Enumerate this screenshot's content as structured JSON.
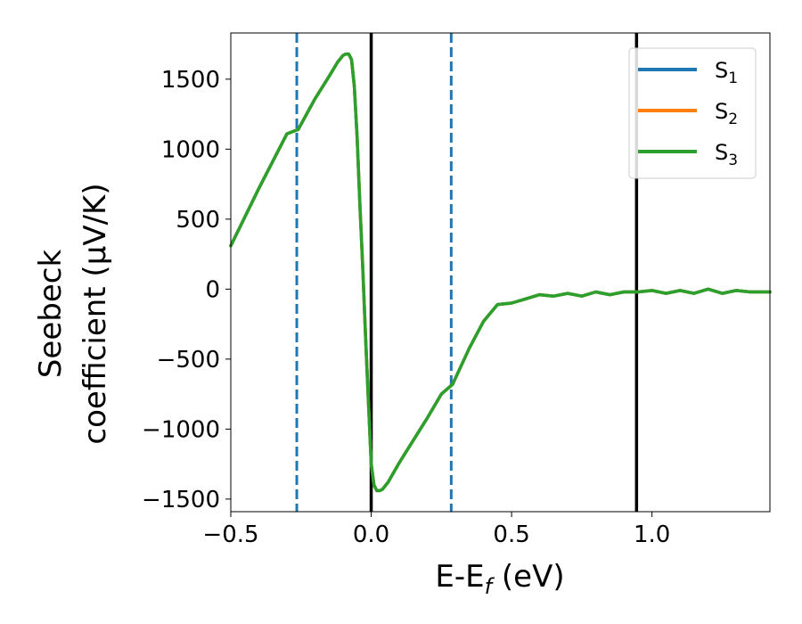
{
  "chart_data": {
    "type": "line",
    "xlabel_main": "E-E",
    "xlabel_sub": "f",
    "xlabel_unit": " (eV)",
    "ylabel_line1": "Seebeck",
    "ylabel_line2": "coefficient  (μV/K)",
    "xlim": [
      -0.5,
      1.42
    ],
    "ylim": [
      -1590,
      1830
    ],
    "x_ticks": [
      -0.5,
      0.0,
      0.5,
      1.0
    ],
    "x_tick_labels": [
      "−0.5",
      "0.0",
      "0.5",
      "1.0"
    ],
    "y_ticks": [
      1500,
      1000,
      500,
      0,
      -500,
      -1000,
      -1500
    ],
    "y_tick_labels": [
      "1500",
      "1000",
      "500",
      "0",
      "−500",
      "−1000",
      "−1500"
    ],
    "grid": false,
    "legend_position": "top-right",
    "series": [
      {
        "name": "S",
        "name_sub": "1",
        "color": "#1f77b4",
        "x": [
          -0.5,
          -0.4,
          -0.3,
          -0.26,
          -0.2,
          -0.15,
          -0.12,
          -0.1,
          -0.09,
          -0.08,
          -0.07,
          -0.06,
          -0.05,
          -0.04,
          -0.03,
          -0.02,
          -0.01,
          0.0,
          0.01,
          0.02,
          0.03,
          0.04,
          0.06,
          0.1,
          0.15,
          0.2,
          0.25,
          0.29,
          0.35,
          0.4,
          0.45,
          0.5,
          0.55,
          0.6,
          0.65,
          0.7,
          0.75,
          0.8,
          0.85,
          0.9,
          0.95,
          1.0,
          1.05,
          1.1,
          1.15,
          1.2,
          1.25,
          1.3,
          1.35,
          1.42
        ],
        "y": [
          310,
          720,
          1110,
          1140,
          1360,
          1520,
          1620,
          1670,
          1680,
          1680,
          1640,
          1450,
          1080,
          600,
          150,
          -350,
          -800,
          -1250,
          -1400,
          -1440,
          -1440,
          -1430,
          -1380,
          -1240,
          -1080,
          -920,
          -750,
          -680,
          -420,
          -230,
          -110,
          -100,
          -70,
          -40,
          -50,
          -30,
          -50,
          -20,
          -40,
          -20,
          -20,
          -10,
          -30,
          -10,
          -30,
          0,
          -30,
          -10,
          -20,
          -20
        ]
      },
      {
        "name": "S",
        "name_sub": "2",
        "color": "#ff7f0e",
        "x": [
          -0.5,
          -0.4,
          -0.3,
          -0.26,
          -0.2,
          -0.15,
          -0.12,
          -0.1,
          -0.09,
          -0.08,
          -0.07,
          -0.06,
          -0.05,
          -0.04,
          -0.03,
          -0.02,
          -0.01,
          0.0,
          0.01,
          0.02,
          0.03,
          0.04,
          0.06,
          0.1,
          0.15,
          0.2,
          0.25,
          0.29,
          0.35,
          0.4,
          0.45,
          0.5,
          0.55,
          0.6,
          0.65,
          0.7,
          0.75,
          0.8,
          0.85,
          0.9,
          0.95,
          1.0,
          1.05,
          1.1,
          1.15,
          1.2,
          1.25,
          1.3,
          1.35,
          1.42
        ],
        "y": [
          310,
          720,
          1110,
          1140,
          1360,
          1520,
          1620,
          1670,
          1680,
          1680,
          1640,
          1450,
          1080,
          600,
          150,
          -350,
          -800,
          -1250,
          -1400,
          -1440,
          -1440,
          -1430,
          -1380,
          -1240,
          -1080,
          -920,
          -750,
          -680,
          -420,
          -230,
          -110,
          -100,
          -70,
          -40,
          -50,
          -30,
          -50,
          -20,
          -40,
          -20,
          -20,
          -10,
          -30,
          -10,
          -30,
          0,
          -30,
          -10,
          -20,
          -20
        ]
      },
      {
        "name": "S",
        "name_sub": "3",
        "color": "#2ca02c",
        "x": [
          -0.5,
          -0.4,
          -0.3,
          -0.26,
          -0.2,
          -0.15,
          -0.12,
          -0.1,
          -0.09,
          -0.08,
          -0.07,
          -0.06,
          -0.05,
          -0.04,
          -0.03,
          -0.02,
          -0.01,
          0.0,
          0.01,
          0.02,
          0.03,
          0.04,
          0.06,
          0.1,
          0.15,
          0.2,
          0.25,
          0.29,
          0.35,
          0.4,
          0.45,
          0.5,
          0.55,
          0.6,
          0.65,
          0.7,
          0.75,
          0.8,
          0.85,
          0.9,
          0.95,
          1.0,
          1.05,
          1.1,
          1.15,
          1.2,
          1.25,
          1.3,
          1.35,
          1.42
        ],
        "y": [
          310,
          720,
          1110,
          1140,
          1360,
          1520,
          1620,
          1670,
          1680,
          1680,
          1640,
          1450,
          1080,
          600,
          150,
          -350,
          -800,
          -1250,
          -1400,
          -1440,
          -1440,
          -1430,
          -1380,
          -1240,
          -1080,
          -920,
          -750,
          -680,
          -420,
          -230,
          -110,
          -100,
          -70,
          -40,
          -50,
          -30,
          -50,
          -20,
          -40,
          -20,
          -20,
          -10,
          -30,
          -10,
          -30,
          0,
          -30,
          -10,
          -20,
          -20
        ]
      }
    ],
    "vertical_lines": [
      {
        "x": -0.265,
        "style": "dashed",
        "color": "#1f77b4"
      },
      {
        "x": 0.0,
        "style": "solid",
        "color": "#000000"
      },
      {
        "x": 0.285,
        "style": "dashed",
        "color": "#1f77b4"
      },
      {
        "x": 0.945,
        "style": "solid",
        "color": "#000000"
      }
    ]
  }
}
